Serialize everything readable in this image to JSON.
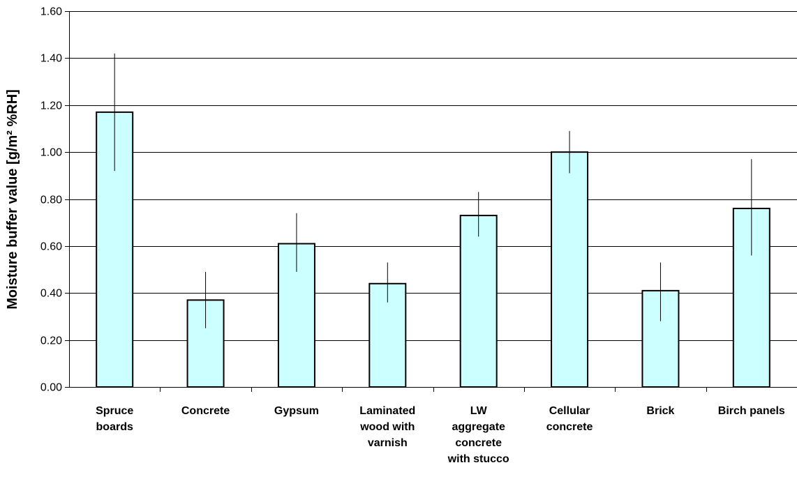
{
  "chart_data": {
    "type": "bar",
    "title": "",
    "ylabel": "Moisture buffer value [g/m² %RH]",
    "xlabel": "",
    "ylim": [
      0,
      1.6
    ],
    "yticks": [
      "0.00",
      "0.20",
      "0.40",
      "0.60",
      "0.80",
      "1.00",
      "1.20",
      "1.40",
      "1.60"
    ],
    "grid": "horizontal",
    "categories": [
      "Spruce boards",
      "Concrete",
      "Gypsum",
      "Laminated wood with varnish",
      "LW aggregate concrete with stucco",
      "Cellular concrete",
      "Brick",
      "Birch panels"
    ],
    "category_lines": [
      [
        "Spruce",
        "boards"
      ],
      [
        "Concrete"
      ],
      [
        "Gypsum"
      ],
      [
        "Laminated",
        "wood with",
        "varnish"
      ],
      [
        "LW",
        "aggregate",
        "concrete",
        "with stucco"
      ],
      [
        "Cellular",
        "concrete"
      ],
      [
        "Brick"
      ],
      [
        "Birch panels"
      ]
    ],
    "values": [
      1.17,
      0.37,
      0.61,
      0.44,
      0.73,
      1.0,
      0.41,
      0.76
    ],
    "error_low": [
      0.92,
      0.25,
      0.49,
      0.36,
      0.64,
      0.91,
      0.28,
      0.56
    ],
    "error_high": [
      1.42,
      0.49,
      0.74,
      0.53,
      0.83,
      1.09,
      0.53,
      0.97
    ],
    "colors": {
      "bar_fill": "#ccffff",
      "bar_stroke": "#000000",
      "grid": "#000000",
      "error_bar": "#000000"
    }
  }
}
